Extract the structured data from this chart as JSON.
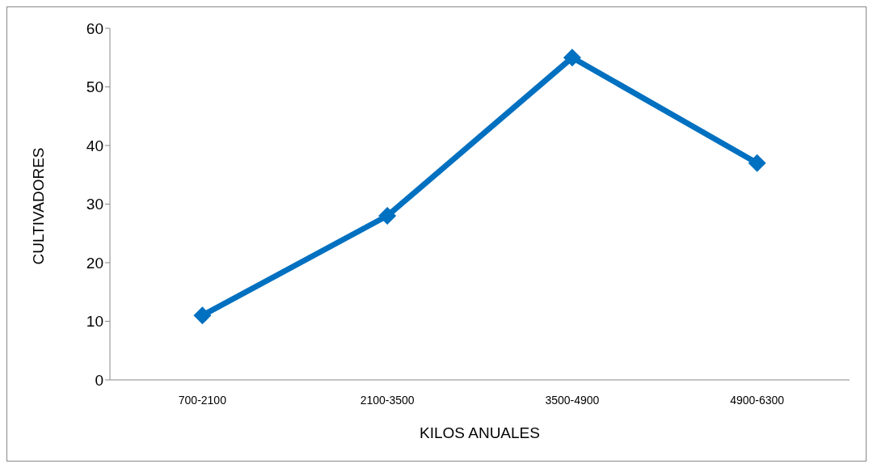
{
  "chart_data": {
    "type": "line",
    "xlabel": "KILOS ANUALES",
    "ylabel": "CULTIVADORES",
    "categories": [
      "700-2100",
      "2100-3500",
      "3500-4900",
      "4900-6300"
    ],
    "series": [
      {
        "color": "#0070c0",
        "values": [
          11,
          28,
          55,
          37
        ]
      }
    ],
    "ylim": [
      0,
      60
    ],
    "yticks": [
      0,
      10,
      20,
      30,
      40,
      50,
      60
    ],
    "grid": false,
    "legend": false,
    "marker": "diamond",
    "line_style": "solid"
  }
}
